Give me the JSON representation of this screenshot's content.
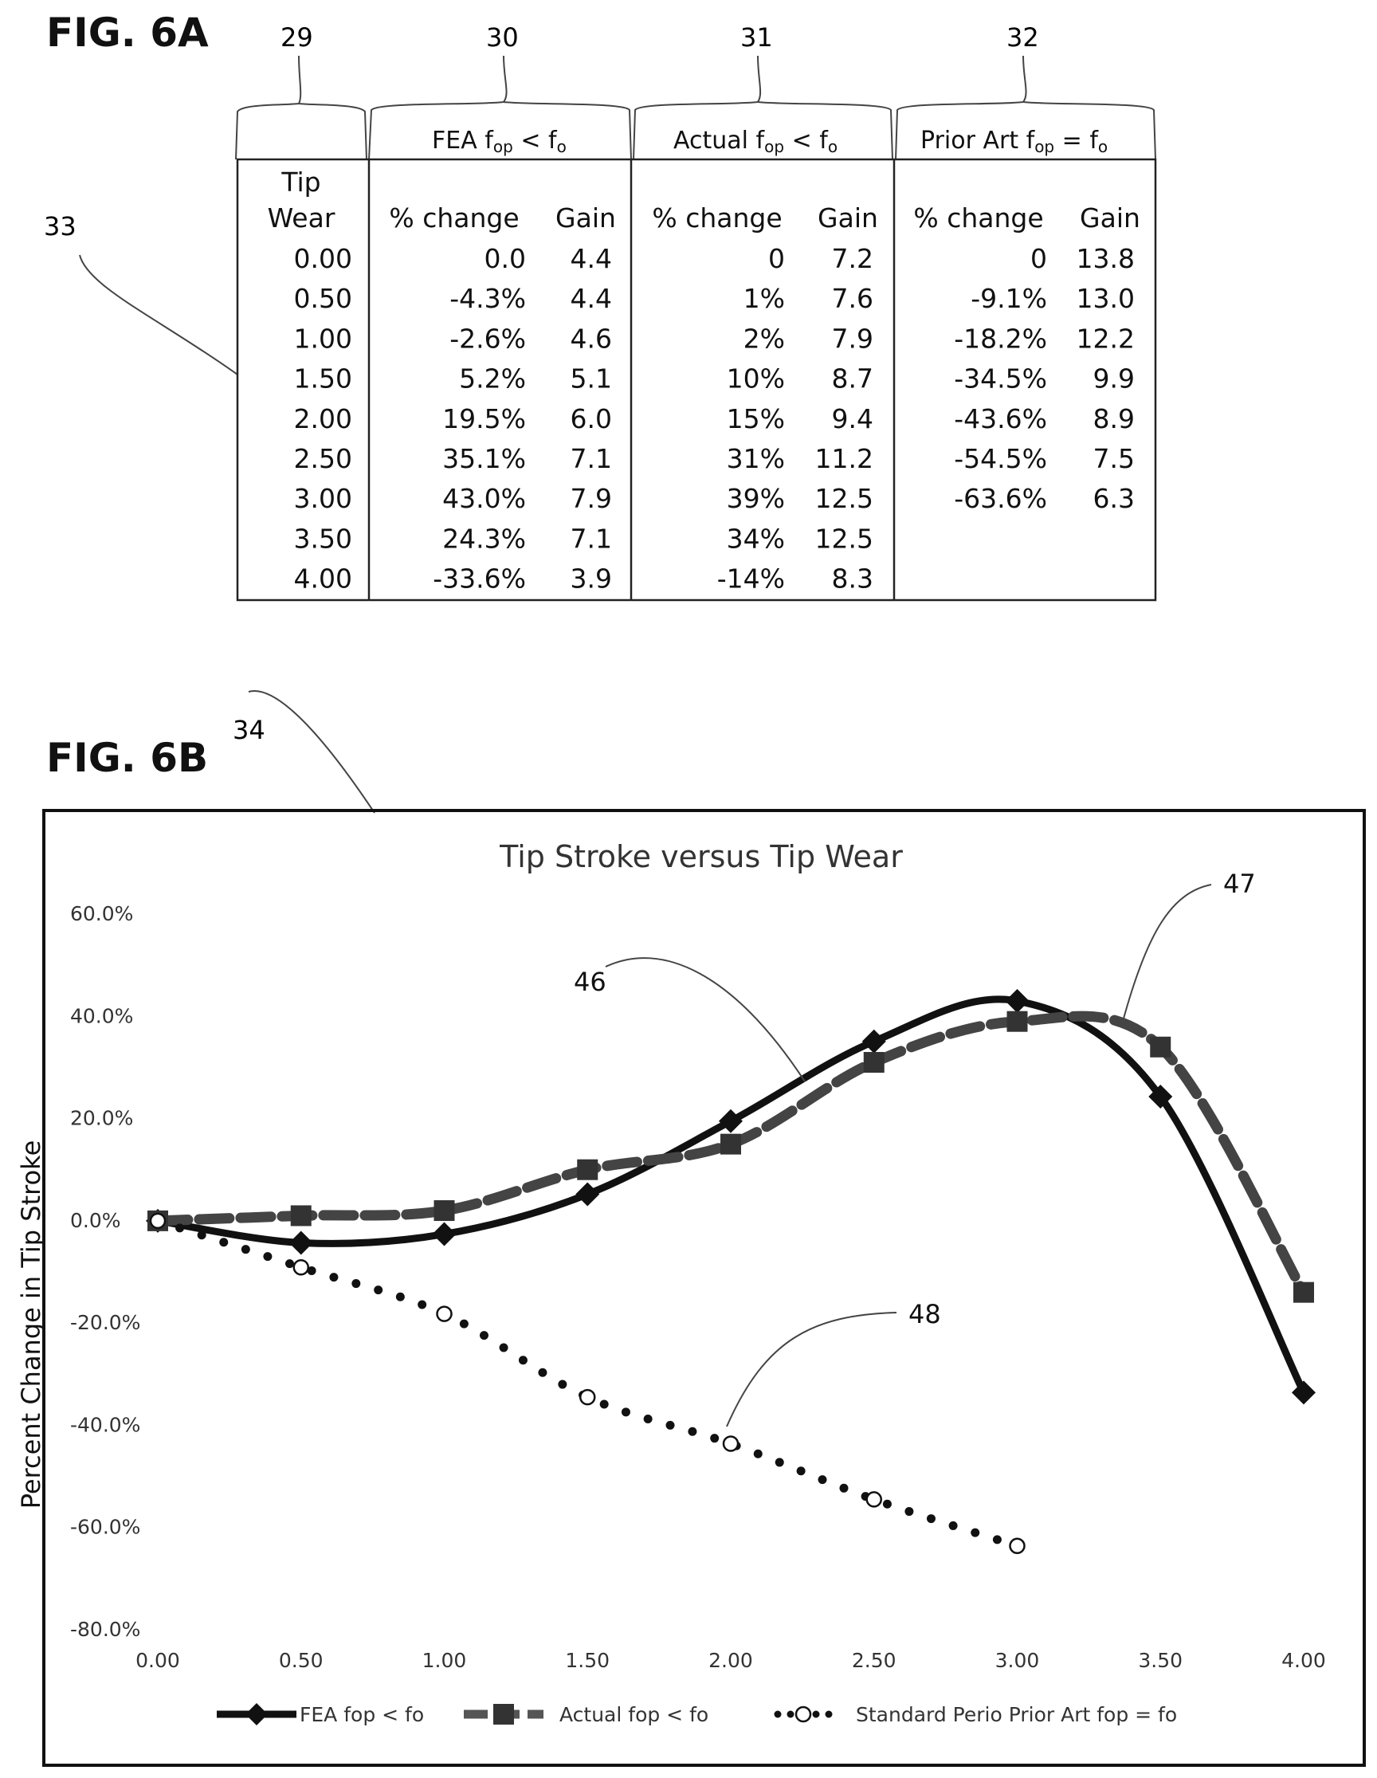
{
  "fig_a": {
    "label": "FIG. 6A",
    "refs": [
      "29",
      "30",
      "31",
      "32",
      "33"
    ],
    "group_headers": [
      {
        "prefix": "FEA  f",
        "sub1": "op",
        "mid": " < f",
        "sub2": "o"
      },
      {
        "prefix": "Actual  f",
        "sub1": "op",
        "mid": " < f",
        "sub2": "o"
      },
      {
        "prefix": "Prior Art  f",
        "sub1": "op",
        "mid": " = f",
        "sub2": "o"
      }
    ],
    "col_head_tip_1": "Tip",
    "col_head_tip_2": "Wear",
    "col_head_pct": "% change",
    "col_head_gain": "Gain",
    "rows": [
      {
        "tip": "0.00",
        "fea_pct": "0.0",
        "fea_gain": "4.4",
        "act_pct": "0",
        "act_gain": "7.2",
        "pri_pct": "0",
        "pri_gain": "13.8"
      },
      {
        "tip": "0.50",
        "fea_pct": "-4.3%",
        "fea_gain": "4.4",
        "act_pct": "1%",
        "act_gain": "7.6",
        "pri_pct": "-9.1%",
        "pri_gain": "13.0"
      },
      {
        "tip": "1.00",
        "fea_pct": "-2.6%",
        "fea_gain": "4.6",
        "act_pct": "2%",
        "act_gain": "7.9",
        "pri_pct": "-18.2%",
        "pri_gain": "12.2"
      },
      {
        "tip": "1.50",
        "fea_pct": "5.2%",
        "fea_gain": "5.1",
        "act_pct": "10%",
        "act_gain": "8.7",
        "pri_pct": "-34.5%",
        "pri_gain": "9.9"
      },
      {
        "tip": "2.00",
        "fea_pct": "19.5%",
        "fea_gain": "6.0",
        "act_pct": "15%",
        "act_gain": "9.4",
        "pri_pct": "-43.6%",
        "pri_gain": "8.9"
      },
      {
        "tip": "2.50",
        "fea_pct": "35.1%",
        "fea_gain": "7.1",
        "act_pct": "31%",
        "act_gain": "11.2",
        "pri_pct": "-54.5%",
        "pri_gain": "7.5"
      },
      {
        "tip": "3.00",
        "fea_pct": "43.0%",
        "fea_gain": "7.9",
        "act_pct": "39%",
        "act_gain": "12.5",
        "pri_pct": "-63.6%",
        "pri_gain": "6.3"
      },
      {
        "tip": "3.50",
        "fea_pct": "24.3%",
        "fea_gain": "7.1",
        "act_pct": "34%",
        "act_gain": "12.5",
        "pri_pct": "",
        "pri_gain": ""
      },
      {
        "tip": "4.00",
        "fea_pct": "-33.6%",
        "fea_gain": "3.9",
        "act_pct": "-14%",
        "act_gain": "8.3",
        "pri_pct": "",
        "pri_gain": ""
      }
    ]
  },
  "fig_b": {
    "label": "FIG. 6B",
    "ref_34": "34",
    "callouts": {
      "c46": "46",
      "c47": "47",
      "c48": "48"
    },
    "legend": {
      "fea": "FEA  fop < fo",
      "actual": "Actual  fop < fo",
      "prior": "Standard Perio Prior Art  fop = fo"
    }
  },
  "chart_data": {
    "type": "line",
    "title": "Tip Stroke versus Tip Wear",
    "xlabel": "",
    "ylabel": "Percent Change in Tip Stroke",
    "x_ticks": [
      "0.00",
      "0.50",
      "1.00",
      "1.50",
      "2.00",
      "2.50",
      "3.00",
      "3.50",
      "4.00"
    ],
    "y_ticks": [
      "60.0%",
      "40.0%",
      "20.0%",
      "0.0%",
      "-20.0%",
      "-40.0%",
      "-60.0%",
      "-80.0%"
    ],
    "xlim": [
      0,
      4
    ],
    "ylim": [
      -80,
      60
    ],
    "grid": false,
    "legend_position": "bottom",
    "series": [
      {
        "name": "FEA  fop < fo",
        "style": "solid",
        "marker": "diamond",
        "color": "#111111",
        "x": [
          0,
          0.5,
          1.0,
          1.5,
          2.0,
          2.5,
          3.0,
          3.5,
          4.0
        ],
        "y": [
          0.0,
          -4.3,
          -2.6,
          5.2,
          19.5,
          35.1,
          43.0,
          24.3,
          -33.6
        ]
      },
      {
        "name": "Actual  fop < fo",
        "style": "dashed",
        "marker": "square",
        "color": "#444444",
        "x": [
          0,
          0.5,
          1.0,
          1.5,
          2.0,
          2.5,
          3.0,
          3.5,
          4.0
        ],
        "y": [
          0,
          1,
          2,
          10,
          15,
          31,
          39,
          34,
          -14
        ]
      },
      {
        "name": "Standard Perio Prior Art  fop = fo",
        "style": "dotted",
        "marker": "open-circle",
        "color": "#111111",
        "x": [
          0,
          0.5,
          1.0,
          1.5,
          2.0,
          2.5,
          3.0
        ],
        "y": [
          0,
          -9.1,
          -18.2,
          -34.5,
          -43.6,
          -54.5,
          -63.6
        ]
      }
    ]
  }
}
